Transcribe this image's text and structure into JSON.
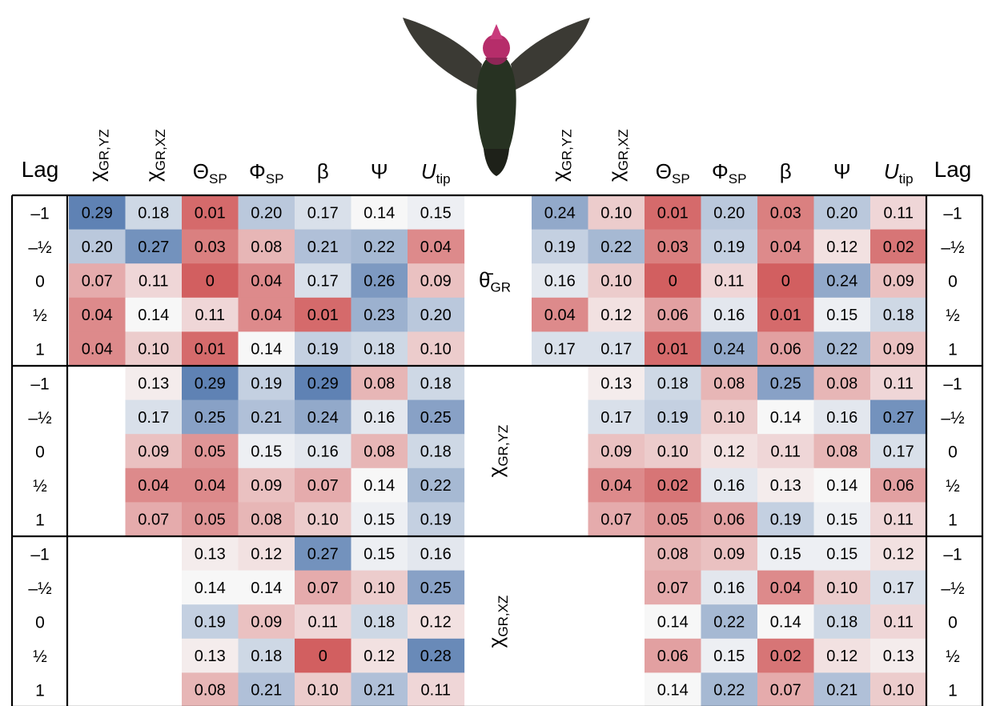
{
  "chart_data": {
    "type": "heatmap",
    "lag_title": "Lag",
    "lag_labels": [
      "–1",
      "–½",
      "0",
      "½",
      "1"
    ],
    "columns": [
      {
        "sym": "χ",
        "sub": "GR,YZ",
        "rot": true,
        "italic": false
      },
      {
        "sym": "χ",
        "sub": "GR,XZ",
        "rot": true,
        "italic": false
      },
      {
        "sym": "Θ",
        "sub": "SP",
        "rot": false,
        "italic": false
      },
      {
        "sym": "Φ",
        "sub": "SP",
        "rot": false,
        "italic": false
      },
      {
        "sym": "β",
        "sub": "",
        "rot": false,
        "italic": false
      },
      {
        "sym": "Ψ",
        "sub": "",
        "rot": false,
        "italic": false
      },
      {
        "sym": "U",
        "sub": "tip",
        "rot": false,
        "italic": true
      }
    ],
    "row_blocks": [
      {
        "sym": "θ̄",
        "sub": "GR",
        "rot": false
      },
      {
        "sym": "χ",
        "sub": "GR,YZ",
        "rot": true
      },
      {
        "sym": "χ",
        "sub": "GR,XZ",
        "rot": true
      }
    ],
    "left_panel": [
      [
        [
          "0.29",
          "0.18",
          "0.01",
          "0.20",
          "0.17",
          "0.14",
          "0.15"
        ],
        [
          "0.20",
          "0.27",
          "0.03",
          "0.08",
          "0.21",
          "0.22",
          "0.04"
        ],
        [
          "0.07",
          "0.11",
          "0",
          "0.04",
          "0.17",
          "0.26",
          "0.09"
        ],
        [
          "0.04",
          "0.14",
          "0.11",
          "0.04",
          "0.01",
          "0.23",
          "0.20"
        ],
        [
          "0.04",
          "0.10",
          "0.01",
          "0.14",
          "0.19",
          "0.18",
          "0.10"
        ]
      ],
      [
        [
          null,
          "0.13",
          "0.29",
          "0.19",
          "0.29",
          "0.08",
          "0.18"
        ],
        [
          null,
          "0.17",
          "0.25",
          "0.21",
          "0.24",
          "0.16",
          "0.25"
        ],
        [
          null,
          "0.09",
          "0.05",
          "0.15",
          "0.16",
          "0.08",
          "0.18"
        ],
        [
          null,
          "0.04",
          "0.04",
          "0.09",
          "0.07",
          "0.14",
          "0.22"
        ],
        [
          null,
          "0.07",
          "0.05",
          "0.08",
          "0.10",
          "0.15",
          "0.19"
        ]
      ],
      [
        [
          null,
          null,
          "0.13",
          "0.12",
          "0.27",
          "0.15",
          "0.16"
        ],
        [
          null,
          null,
          "0.14",
          "0.14",
          "0.07",
          "0.10",
          "0.25"
        ],
        [
          null,
          null,
          "0.19",
          "0.09",
          "0.11",
          "0.18",
          "0.12"
        ],
        [
          null,
          null,
          "0.13",
          "0.18",
          "0",
          "0.12",
          "0.28"
        ],
        [
          null,
          null,
          "0.08",
          "0.21",
          "0.10",
          "0.21",
          "0.11"
        ]
      ]
    ],
    "right_panel": [
      [
        [
          "0.24",
          "0.10",
          "0.01",
          "0.20",
          "0.03",
          "0.20",
          "0.11"
        ],
        [
          "0.19",
          "0.22",
          "0.03",
          "0.19",
          "0.04",
          "0.12",
          "0.02"
        ],
        [
          "0.16",
          "0.10",
          "0",
          "0.11",
          "0",
          "0.24",
          "0.09"
        ],
        [
          "0.04",
          "0.12",
          "0.06",
          "0.16",
          "0.01",
          "0.15",
          "0.18"
        ],
        [
          "0.17",
          "0.17",
          "0.01",
          "0.24",
          "0.06",
          "0.22",
          "0.09"
        ]
      ],
      [
        [
          null,
          "0.13",
          "0.18",
          "0.08",
          "0.25",
          "0.08",
          "0.11"
        ],
        [
          null,
          "0.17",
          "0.19",
          "0.10",
          "0.14",
          "0.16",
          "0.27"
        ],
        [
          null,
          "0.09",
          "0.10",
          "0.12",
          "0.11",
          "0.08",
          "0.17"
        ],
        [
          null,
          "0.04",
          "0.02",
          "0.16",
          "0.13",
          "0.14",
          "0.06"
        ],
        [
          null,
          "0.07",
          "0.05",
          "0.06",
          "0.19",
          "0.15",
          "0.11"
        ]
      ],
      [
        [
          null,
          null,
          "0.08",
          "0.09",
          "0.15",
          "0.15",
          "0.12"
        ],
        [
          null,
          null,
          "0.07",
          "0.16",
          "0.04",
          "0.10",
          "0.17"
        ],
        [
          null,
          null,
          "0.14",
          "0.22",
          "0.14",
          "0.18",
          "0.11"
        ],
        [
          null,
          null,
          "0.06",
          "0.15",
          "0.02",
          "0.12",
          "0.13"
        ],
        [
          null,
          null,
          "0.14",
          "0.22",
          "0.07",
          "0.21",
          "0.10"
        ]
      ]
    ],
    "color_scale": {
      "low": "#d25f60",
      "mid": "#f7f7f7",
      "high": "#5f82b4",
      "min": 0,
      "mid_value": 0.14,
      "max": 0.29
    }
  }
}
